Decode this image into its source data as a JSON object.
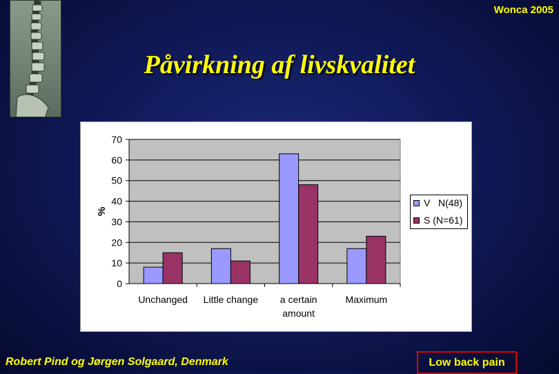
{
  "conference": "Wonca 2005",
  "title": "Påvirkning af livskvalitet",
  "footer": {
    "author": "Robert  Pind og Jørgen Solgaard, Denmark",
    "topic": "Low back pain"
  },
  "colors": {
    "seriesV": "#9999ff",
    "seriesS": "#993366",
    "plotBg": "#c0c0c0",
    "titleYellow": "#ffff00"
  },
  "chart_data": {
    "type": "bar",
    "categories": [
      "Unchanged",
      "Little change",
      "a certain amount",
      "Maximum"
    ],
    "series": [
      {
        "name": "V   N(48)",
        "values": [
          8,
          17,
          63,
          17
        ]
      },
      {
        "name": "S (N=61)",
        "values": [
          15,
          11,
          48,
          23
        ]
      }
    ],
    "ylabel": "%",
    "yticks": [
      0,
      10,
      20,
      30,
      40,
      50,
      60,
      70
    ],
    "ylim": [
      0,
      70
    ],
    "grid": true,
    "legend": "right"
  }
}
